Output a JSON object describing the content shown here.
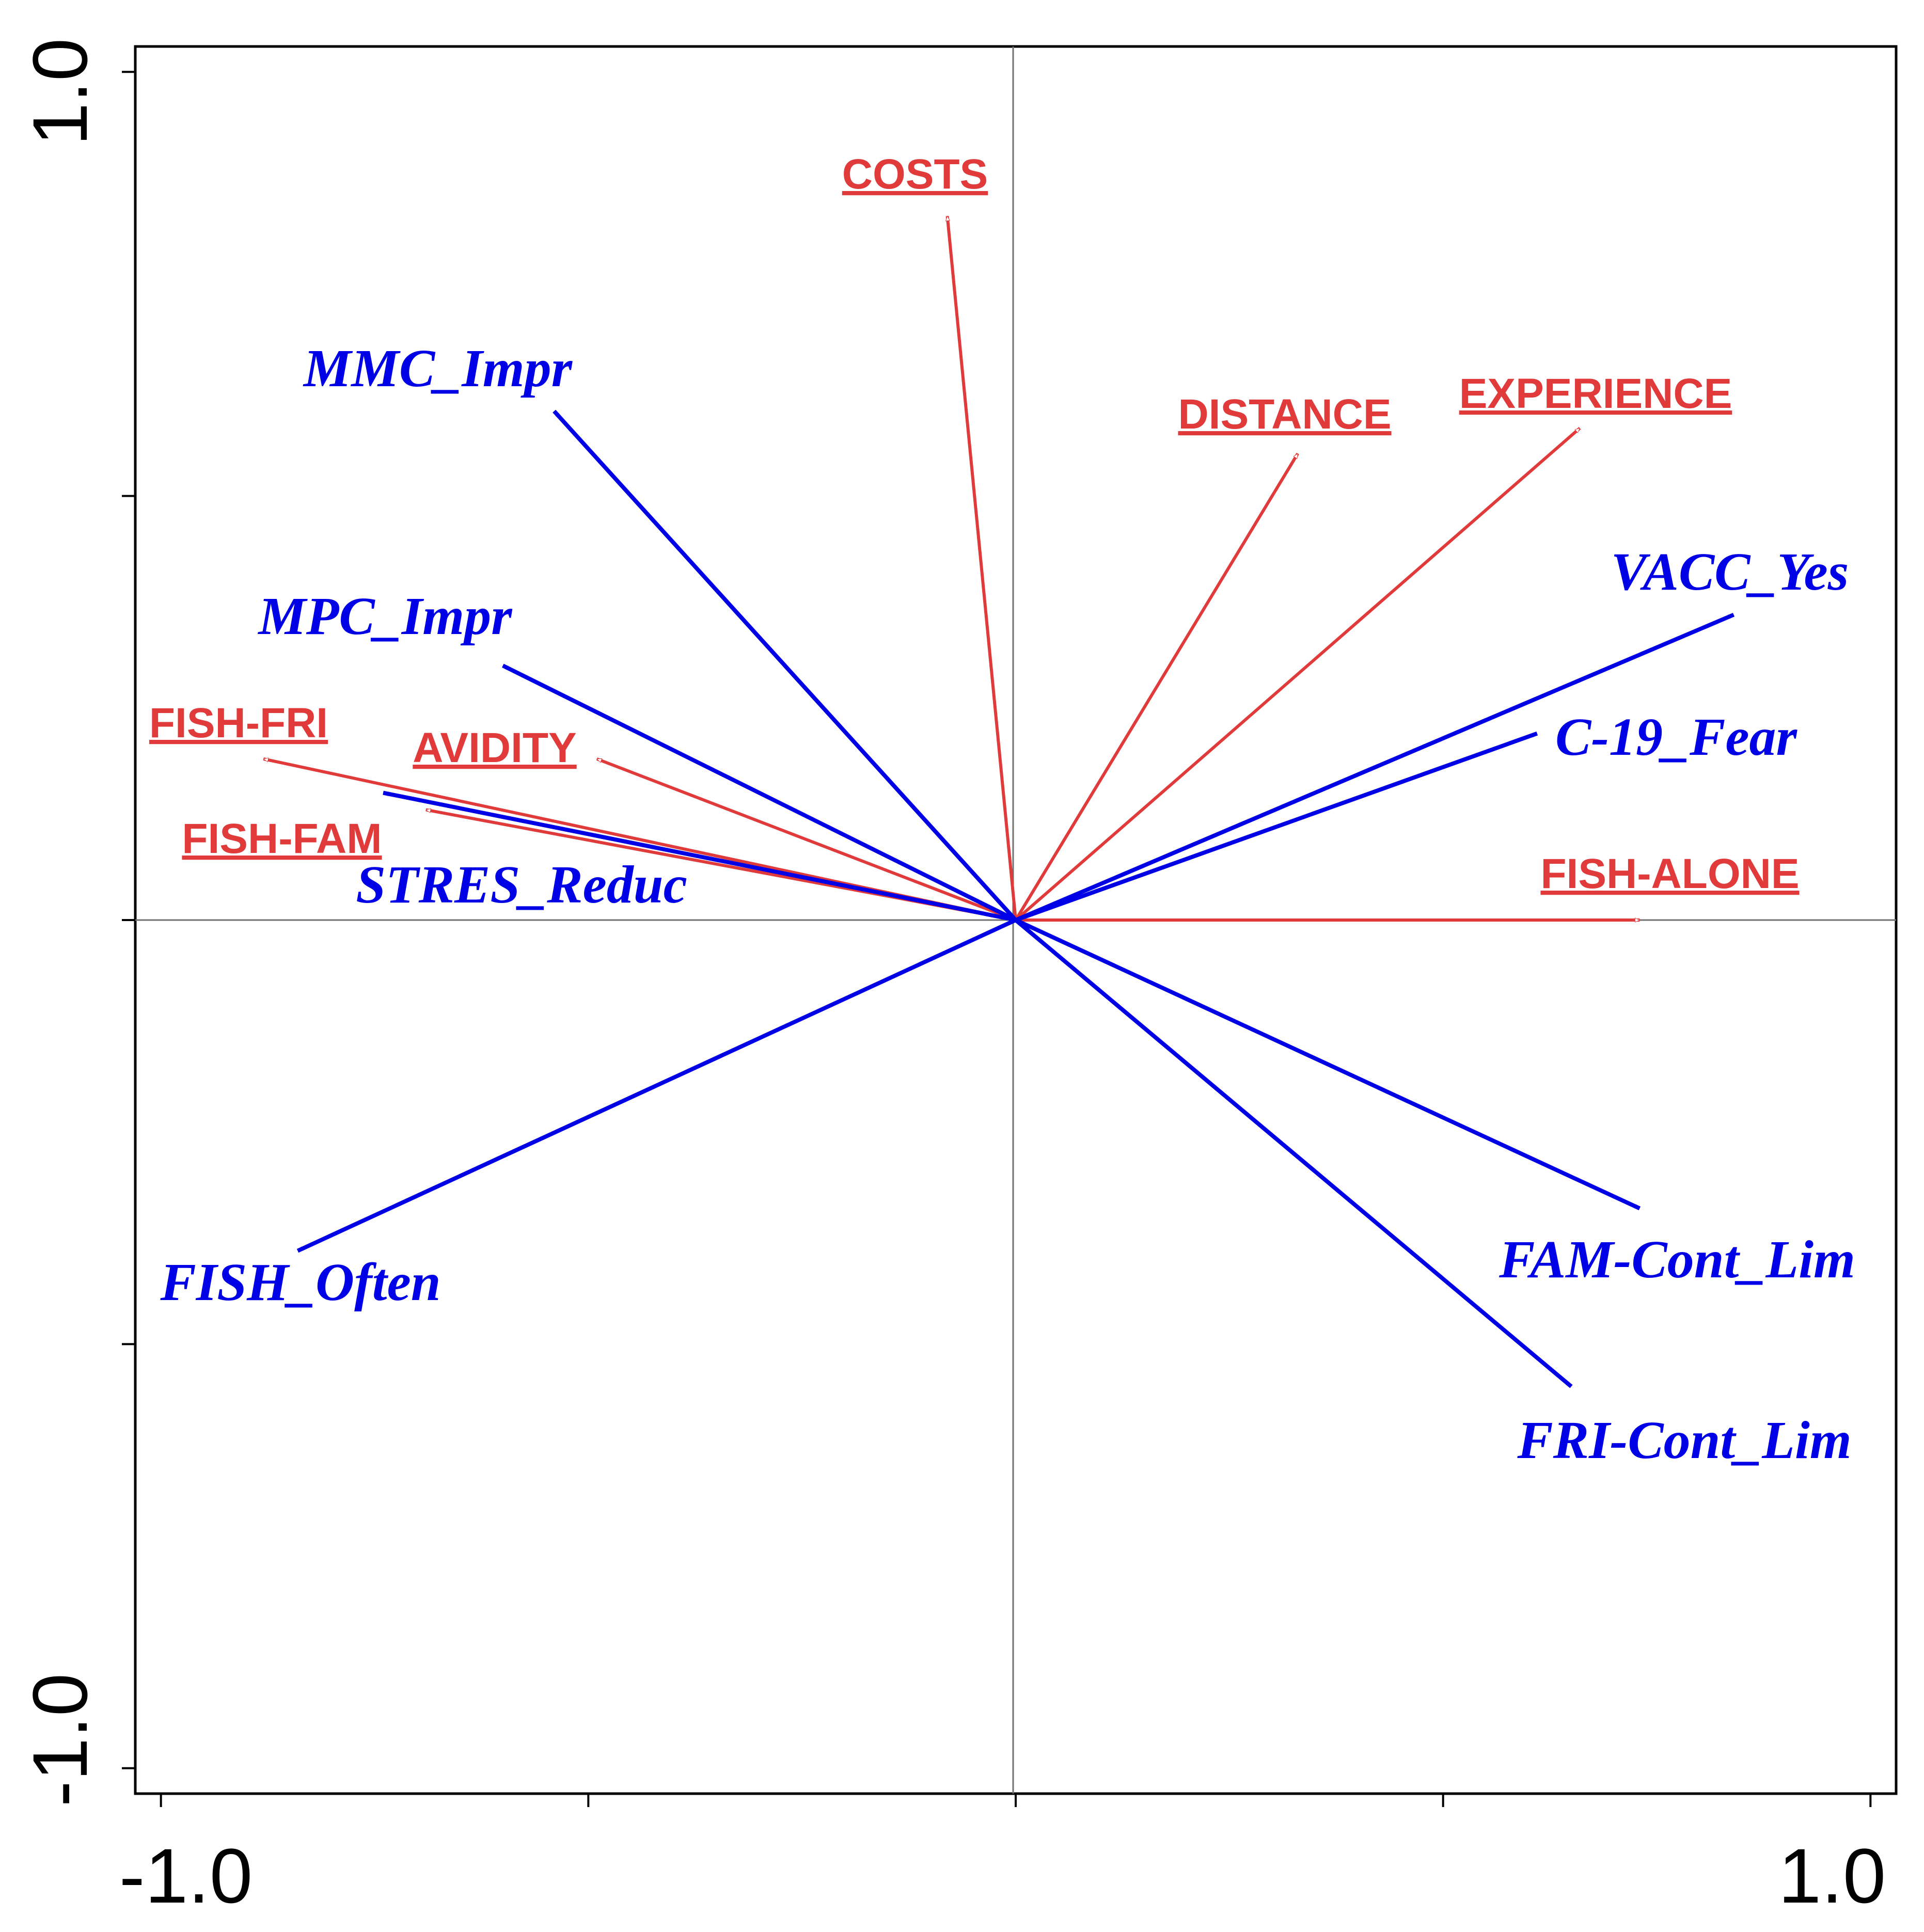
{
  "chart_data": {
    "type": "scatter",
    "title": "",
    "xlabel": "",
    "ylabel": "",
    "xlim": [
      -1.03,
      1.03
    ],
    "ylim": [
      -1.03,
      1.03
    ],
    "x_tick_labels": [
      "-1.0",
      "1.0"
    ],
    "y_tick_labels": [
      "1.0",
      "-1.0"
    ],
    "grid": false,
    "origin_lines": true,
    "series": [
      {
        "style": "hollow-arrow",
        "color": "#e03a3a",
        "label_style": "bold-underlined-sans",
        "vectors": [
          {
            "label": "COSTS",
            "x": -0.08,
            "y": 0.83
          },
          {
            "label": "DISTANCE",
            "x": 0.33,
            "y": 0.55
          },
          {
            "label": "EXPERIENCE",
            "x": 0.66,
            "y": 0.58
          },
          {
            "label": "FISH-FRI",
            "x": -0.88,
            "y": 0.19
          },
          {
            "label": "AVIDITY",
            "x": -0.49,
            "y": 0.19
          },
          {
            "label": "FISH-FAM",
            "x": -0.69,
            "y": 0.13
          },
          {
            "label": "FISH-ALONE",
            "x": 0.73,
            "y": 0.0
          }
        ]
      },
      {
        "style": "solid-arrow",
        "color": "#0000e6",
        "label_style": "bold-italic-serif",
        "vectors": [
          {
            "label": "MMC_Impr",
            "x": -0.54,
            "y": 0.6
          },
          {
            "label": "MPC_Impr",
            "x": -0.6,
            "y": 0.3
          },
          {
            "label": "STRES_Reduc",
            "x": -0.74,
            "y": 0.15
          },
          {
            "label": "VACC_Yes",
            "x": 0.84,
            "y": 0.36
          },
          {
            "label": "C-19_Fear",
            "x": 0.61,
            "y": 0.22
          },
          {
            "label": "FISH_Often",
            "x": -0.84,
            "y": -0.39
          },
          {
            "label": "FAM-Cont_Lim",
            "x": 0.73,
            "y": -0.34
          },
          {
            "label": "FRI-Cont_Lim",
            "x": 0.65,
            "y": -0.55
          }
        ]
      }
    ]
  }
}
